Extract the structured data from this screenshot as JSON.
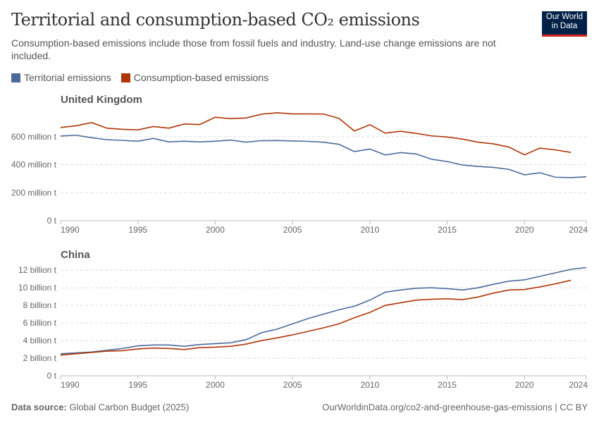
{
  "header": {
    "title": "Territorial and consumption-based CO₂ emissions",
    "subtitle": "Consumption-based emissions include those from fossil fuels and industry. Land-use change emissions are not included.",
    "logo": "Our World in Data"
  },
  "legend": [
    {
      "label": "Territorial emissions",
      "color": "#4c6a9c"
    },
    {
      "label": "Consumption-based emissions",
      "color": "#b13507"
    }
  ],
  "footer": {
    "source_label": "Data source:",
    "source": "Global Carbon Budget (2025)",
    "url": "OurWorldinData.org/co2-and-greenhouse-gas-emissions | CC BY"
  },
  "chart_data": [
    {
      "type": "line",
      "title": "United Kingdom",
      "xlim": [
        1990,
        2024
      ],
      "ylim": [
        0,
        800
      ],
      "x_ticks": [
        "1990",
        "1995",
        "2000",
        "2005",
        "2010",
        "2015",
        "2020",
        "2024"
      ],
      "y_ticks": [
        {
          "v": 0,
          "label": "0 t"
        },
        {
          "v": 200,
          "label": "200 million t"
        },
        {
          "v": 400,
          "label": "400 million t"
        },
        {
          "v": 600,
          "label": "600 million t"
        }
      ],
      "grid": true,
      "series": [
        {
          "name": "Territorial emissions",
          "color": "#4c6a9c",
          "start": 1990,
          "values": [
            604,
            610,
            592,
            578,
            573,
            567,
            587,
            562,
            567,
            562,
            567,
            575,
            560,
            571,
            572,
            569,
            566,
            560,
            545,
            493,
            511,
            469,
            486,
            476,
            438,
            422,
            397,
            387,
            380,
            366,
            327,
            342,
            310,
            307,
            313
          ]
        },
        {
          "name": "Consumption-based emissions",
          "color": "#b13507",
          "start": 1990,
          "values": [
            665,
            677,
            700,
            660,
            652,
            648,
            672,
            660,
            690,
            686,
            738,
            728,
            733,
            760,
            770,
            762,
            762,
            761,
            730,
            640,
            685,
            625,
            638,
            623,
            605,
            597,
            582,
            560,
            548,
            525,
            470,
            518,
            505,
            487
          ]
        }
      ]
    },
    {
      "type": "line",
      "title": "China",
      "xlim": [
        1990,
        2024
      ],
      "ylim": [
        0,
        12.5
      ],
      "x_ticks": [
        "1990",
        "1995",
        "2000",
        "2005",
        "2010",
        "2015",
        "2020",
        "2024"
      ],
      "y_ticks": [
        {
          "v": 0,
          "label": "0 t"
        },
        {
          "v": 2,
          "label": "2 billion t"
        },
        {
          "v": 4,
          "label": "4 billion t"
        },
        {
          "v": 6,
          "label": "6 billion t"
        },
        {
          "v": 8,
          "label": "8 billion t"
        },
        {
          "v": 10,
          "label": "10 billion t"
        },
        {
          "v": 12,
          "label": "12 billion t"
        }
      ],
      "grid": true,
      "series": [
        {
          "name": "Territorial emissions",
          "color": "#4c6a9c",
          "start": 1990,
          "values": [
            2.5,
            2.6,
            2.7,
            2.9,
            3.1,
            3.4,
            3.5,
            3.5,
            3.35,
            3.55,
            3.65,
            3.75,
            4.1,
            4.9,
            5.3,
            5.9,
            6.5,
            7.0,
            7.5,
            7.9,
            8.6,
            9.5,
            9.75,
            9.95,
            10.0,
            9.9,
            9.75,
            10.0,
            10.4,
            10.75,
            10.9,
            11.3,
            11.7,
            12.1,
            12.3
          ]
        },
        {
          "name": "Consumption-based emissions",
          "color": "#b13507",
          "start": 1990,
          "values": [
            2.35,
            2.5,
            2.65,
            2.8,
            2.85,
            3.05,
            3.15,
            3.1,
            2.98,
            3.2,
            3.25,
            3.35,
            3.6,
            4.0,
            4.3,
            4.65,
            5.05,
            5.45,
            5.9,
            6.6,
            7.2,
            8.0,
            8.3,
            8.6,
            8.7,
            8.75,
            8.65,
            8.95,
            9.4,
            9.75,
            9.8,
            10.1,
            10.45,
            10.85
          ]
        }
      ]
    }
  ]
}
